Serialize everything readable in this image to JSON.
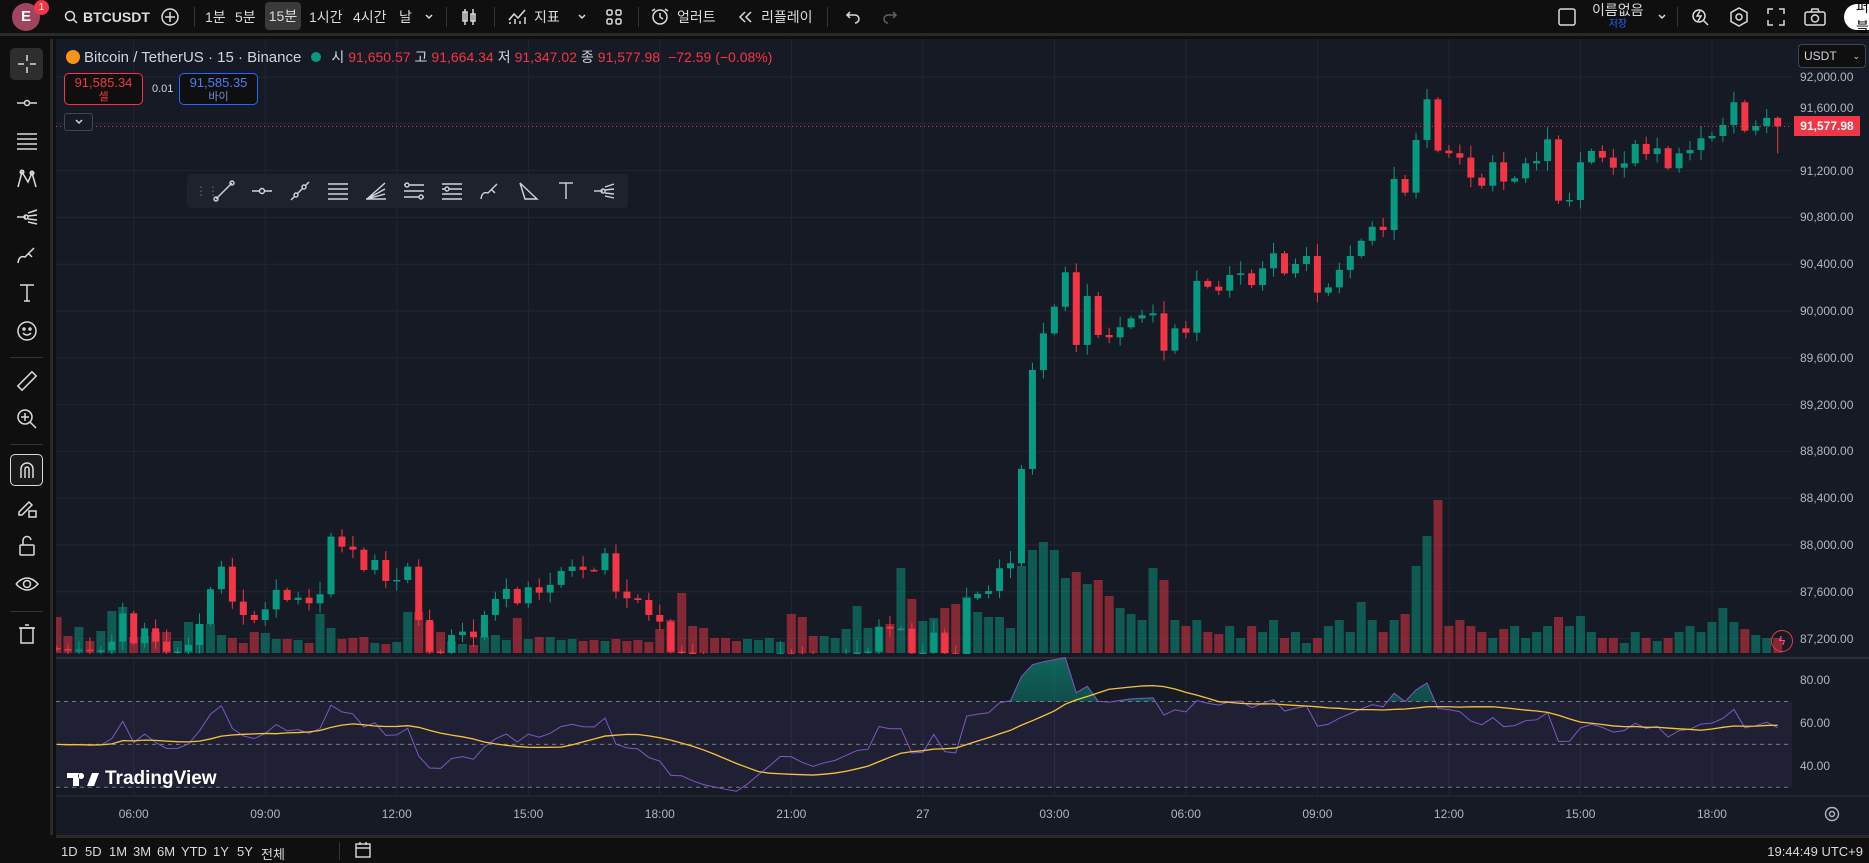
{
  "topbar": {
    "avatar_letter": "E",
    "notification_count": "1",
    "symbol": "BTCUSDT",
    "intervals": [
      "1분",
      "5分",
      "15분",
      "1시간",
      "4시간",
      "날"
    ],
    "active_interval": "15분",
    "indicators_label": "지표",
    "alert_label": "얼러트",
    "replay_label": "리플레이",
    "layout_name": "이름없음",
    "save_label": "저장",
    "publish_label": "퍼블"
  },
  "legend": {
    "title": "Bitcoin / TetherUS · 15 · Binance",
    "o_label": "시",
    "o": "91,650.57",
    "h_label": "고",
    "h": "91,664.34",
    "l_label": "저",
    "l": "91,347.02",
    "c_label": "종",
    "c": "91,577.98",
    "change": "−72.59 (−0.08%)"
  },
  "trade": {
    "sell_price": "91,585.34",
    "sell_label": "셀",
    "spread": "0.01",
    "buy_price": "91,585.35",
    "buy_label": "바이"
  },
  "currency": "USDT",
  "price_axis": {
    "labels": [
      "92,000.00",
      "91,600.00",
      "91,200.00",
      "90,800.00",
      "90,400.00",
      "90,000.00",
      "89,600.00",
      "89,200.00",
      "88,800.00",
      "88,400.00",
      "88,000.00",
      "87,600.00",
      "87,200.00"
    ],
    "current_price": "91,577.98"
  },
  "rsi_axis": {
    "labels": [
      "80.00",
      "60.00",
      "40.00"
    ],
    "upper_band": 70,
    "middle_band": 50,
    "lower_band": 30,
    "length": 14,
    "ma_length": 14
  },
  "time_axis": [
    "06:00",
    "09:00",
    "12:00",
    "15:00",
    "18:00",
    "21:00",
    "27",
    "03:00",
    "06:00",
    "09:00",
    "12:00",
    "15:00",
    "18:00"
  ],
  "bottombar": {
    "ranges": [
      "1D",
      "5D",
      "1M",
      "3M",
      "6M",
      "YTD",
      "1Y",
      "5Y",
      "전체"
    ],
    "clock": "19:44:49 UTC+9"
  },
  "watermark": "TradingView",
  "colors": {
    "up": "#089981",
    "down": "#f23645",
    "rsi": "#7e57c2",
    "rsi_ma": "#f5c33b",
    "background": "#161a25"
  },
  "chart_data": {
    "type": "candlestick",
    "interval_minutes": 15,
    "first_bar": "04:15",
    "last_bar": "19:30",
    "price_range": [
      87100,
      92100
    ],
    "last_bar_ohlc": {
      "open": 91650.57,
      "high": 91664.34,
      "low": 91347.02,
      "close": 91577.98
    },
    "close": [
      87110,
      87100,
      87105,
      87095,
      87100,
      87174,
      87416,
      87160,
      87288,
      87174,
      87089,
      87090,
      87146,
      87325,
      87622,
      87815,
      87516,
      87402,
      87359,
      87450,
      87616,
      87530,
      87550,
      87502,
      87579,
      88072,
      87986,
      87960,
      87787,
      87872,
      87693,
      87701,
      87815,
      87359,
      87089,
      87080,
      87231,
      87260,
      87211,
      87402,
      87539,
      87624,
      87502,
      87639,
      87593,
      87659,
      87778,
      87815,
      87787,
      87785,
      87929,
      87602,
      87545,
      87530,
      87402,
      87345,
      87089,
      87080,
      86980,
      86900,
      86850,
      86800,
      86760,
      86820,
      86900,
      86980,
      87075,
      87070,
      87000,
      86950,
      86980,
      87000,
      87040,
      87080,
      87090,
      87302,
      87285,
      87285,
      87075,
      87080,
      87251,
      87075,
      87060,
      87545,
      87582,
      87607,
      87801,
      87844,
      88650,
      89496,
      89809,
      90037,
      90331,
      89710,
      90128,
      89795,
      89775,
      89861,
      89937,
      89963,
      89980,
      89661,
      89852,
      89815,
      90257,
      90208,
      90174,
      90308,
      90322,
      90222,
      90365,
      90493,
      90322,
      90402,
      90470,
      90157,
      90202,
      90351,
      90470,
      90600,
      90720,
      90692,
      91128,
      91012,
      91462,
      91809,
      91371,
      91348,
      91311,
      91140,
      91071,
      91271,
      91106,
      91134,
      91262,
      91282,
      91467,
      90943,
      90949,
      91271,
      91368,
      91311,
      91225,
      91262,
      91428,
      91342,
      91391,
      91220,
      91348,
      91376,
      91476,
      91496,
      91590,
      91784,
      91541,
      91581,
      91650.57,
      91577.98
    ],
    "volume_relative": [
      36,
      17,
      26,
      12,
      22,
      42,
      46,
      16,
      17,
      21,
      21,
      12,
      31,
      29,
      29,
      18,
      15,
      10,
      21,
      20,
      14,
      14,
      13,
      10,
      39,
      25,
      14,
      15,
      16,
      10,
      9,
      11,
      41,
      41,
      31,
      21,
      12,
      9,
      8,
      17,
      18,
      13,
      35,
      14,
      16,
      16,
      13,
      14,
      12,
      13,
      12,
      14,
      12,
      13,
      11,
      24,
      33,
      60,
      27,
      25,
      15,
      15,
      12,
      14,
      13,
      15,
      11,
      39,
      36,
      17,
      17,
      15,
      24,
      47,
      25,
      26,
      29,
      85,
      54,
      32,
      35,
      45,
      49,
      56,
      41,
      36,
      36,
      25,
      87,
      103,
      111,
      103,
      75,
      81,
      69,
      73,
      57,
      45,
      39,
      33,
      85,
      73,
      33,
      27,
      33,
      21,
      19,
      27,
      15,
      27,
      21,
      33,
      15,
      21,
      10,
      15,
      27,
      33,
      21,
      51,
      33,
      21,
      33,
      39,
      87,
      117,
      153,
      27,
      33,
      27,
      21,
      15,
      24,
      27,
      15,
      21,
      27,
      36,
      27,
      37,
      21,
      15,
      15,
      10,
      21,
      15,
      12,
      15,
      21,
      27,
      21,
      31,
      45,
      31,
      24,
      18,
      15,
      15
    ]
  }
}
